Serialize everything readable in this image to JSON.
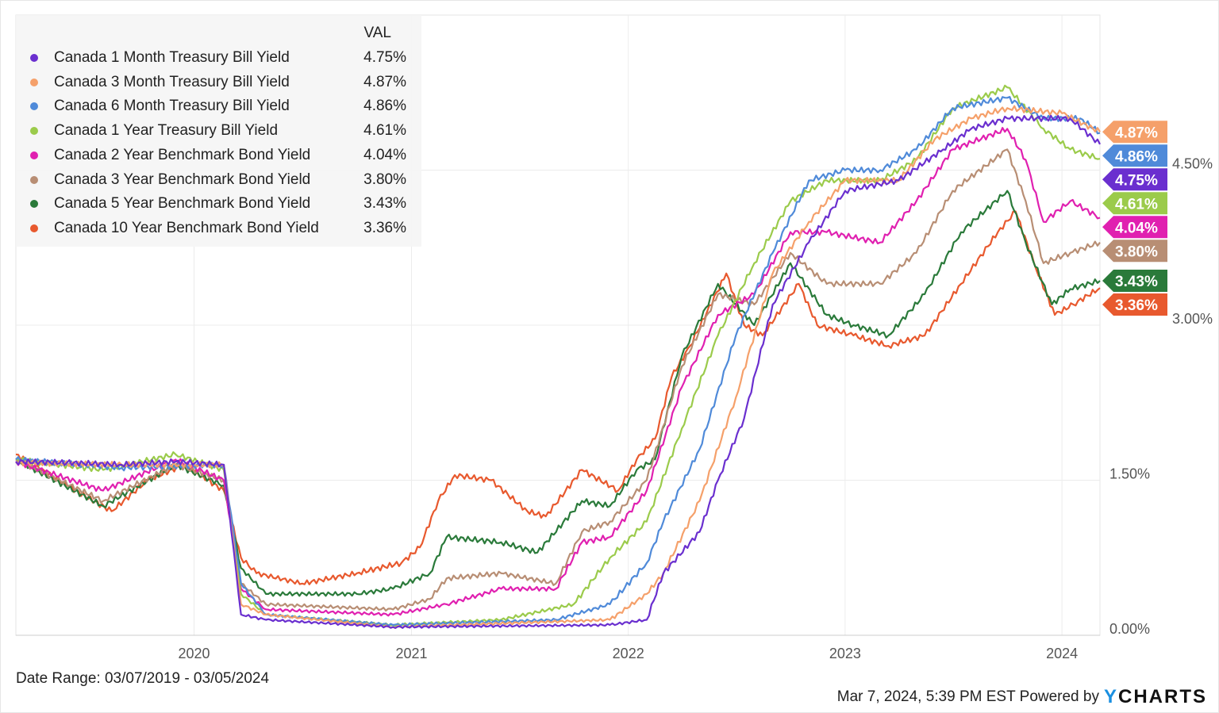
{
  "chart_data": {
    "type": "line",
    "xlabel": "",
    "ylabel": "",
    "x_ticks": [
      "2020",
      "2021",
      "2022",
      "2023",
      "2024"
    ],
    "y_ticks": [
      "0.00%",
      "1.50%",
      "3.00%",
      "4.50%"
    ],
    "y_tick_values": [
      0,
      1.5,
      3.0,
      4.5
    ],
    "ylim": [
      0,
      6.0
    ],
    "xlim": [
      "2019-03-07",
      "2024-03-05"
    ],
    "grid": true,
    "legend_position": "top-left",
    "legend_header": "VAL",
    "series": [
      {
        "name": "Canada 1 Month Treasury Bill Yield",
        "last": "4.75%",
        "color": "#6a2fcf",
        "points": [
          [
            "2019-03-07",
            1.68
          ],
          [
            "2019-06-01",
            1.67
          ],
          [
            "2019-09-01",
            1.65
          ],
          [
            "2019-12-01",
            1.68
          ],
          [
            "2020-02-20",
            1.65
          ],
          [
            "2020-03-20",
            0.2
          ],
          [
            "2020-05-01",
            0.15
          ],
          [
            "2020-12-01",
            0.08
          ],
          [
            "2021-12-01",
            0.1
          ],
          [
            "2022-02-01",
            0.15
          ],
          [
            "2022-03-01",
            0.6
          ],
          [
            "2022-05-01",
            1.0
          ],
          [
            "2022-06-01",
            1.5
          ],
          [
            "2022-07-15",
            2.1
          ],
          [
            "2022-09-01",
            3.2
          ],
          [
            "2022-11-01",
            3.8
          ],
          [
            "2023-01-01",
            4.3
          ],
          [
            "2023-04-01",
            4.4
          ],
          [
            "2023-06-15",
            4.7
          ],
          [
            "2023-08-01",
            4.9
          ],
          [
            "2023-10-01",
            5.0
          ],
          [
            "2024-01-15",
            5.0
          ],
          [
            "2024-03-05",
            4.75
          ]
        ]
      },
      {
        "name": "Canada 3 Month Treasury Bill Yield",
        "last": "4.87%",
        "color": "#f5a06a",
        "points": [
          [
            "2019-03-07",
            1.67
          ],
          [
            "2019-09-01",
            1.65
          ],
          [
            "2020-02-20",
            1.65
          ],
          [
            "2020-03-20",
            0.3
          ],
          [
            "2020-05-01",
            0.2
          ],
          [
            "2020-12-01",
            0.08
          ],
          [
            "2021-12-01",
            0.15
          ],
          [
            "2022-02-01",
            0.4
          ],
          [
            "2022-03-01",
            0.6
          ],
          [
            "2022-05-01",
            1.3
          ],
          [
            "2022-07-01",
            2.3
          ],
          [
            "2022-09-01",
            3.5
          ],
          [
            "2022-11-01",
            4.0
          ],
          [
            "2023-01-01",
            4.4
          ],
          [
            "2023-04-01",
            4.4
          ],
          [
            "2023-06-01",
            4.8
          ],
          [
            "2023-08-01",
            5.0
          ],
          [
            "2023-10-01",
            5.1
          ],
          [
            "2024-01-01",
            5.05
          ],
          [
            "2024-03-05",
            4.87
          ]
        ]
      },
      {
        "name": "Canada 6 Month Treasury Bill Yield",
        "last": "4.86%",
        "color": "#4f8ad9",
        "points": [
          [
            "2019-03-07",
            1.7
          ],
          [
            "2019-09-01",
            1.62
          ],
          [
            "2020-02-20",
            1.65
          ],
          [
            "2020-03-20",
            0.5
          ],
          [
            "2020-05-01",
            0.2
          ],
          [
            "2020-12-01",
            0.1
          ],
          [
            "2021-09-01",
            0.15
          ],
          [
            "2021-12-01",
            0.3
          ],
          [
            "2022-02-01",
            0.7
          ],
          [
            "2022-03-01",
            1.1
          ],
          [
            "2022-05-01",
            1.8
          ],
          [
            "2022-07-01",
            2.9
          ],
          [
            "2022-09-01",
            3.7
          ],
          [
            "2022-11-01",
            4.4
          ],
          [
            "2023-01-01",
            4.5
          ],
          [
            "2023-03-01",
            4.5
          ],
          [
            "2023-05-01",
            4.7
          ],
          [
            "2023-07-01",
            5.1
          ],
          [
            "2023-10-01",
            5.2
          ],
          [
            "2023-12-01",
            5.0
          ],
          [
            "2024-02-01",
            5.0
          ],
          [
            "2024-03-05",
            4.86
          ]
        ]
      },
      {
        "name": "Canada 1 Year Treasury Bill Yield",
        "last": "4.61%",
        "color": "#9bcb4b",
        "points": [
          [
            "2019-03-07",
            1.7
          ],
          [
            "2019-08-01",
            1.6
          ],
          [
            "2019-12-01",
            1.75
          ],
          [
            "2020-02-20",
            1.6
          ],
          [
            "2020-03-20",
            0.4
          ],
          [
            "2020-05-01",
            0.2
          ],
          [
            "2020-12-01",
            0.1
          ],
          [
            "2021-06-01",
            0.15
          ],
          [
            "2021-10-01",
            0.3
          ],
          [
            "2021-12-01",
            0.75
          ],
          [
            "2022-02-01",
            1.1
          ],
          [
            "2022-04-01",
            2.0
          ],
          [
            "2022-06-01",
            2.9
          ],
          [
            "2022-08-01",
            3.6
          ],
          [
            "2022-10-01",
            4.2
          ],
          [
            "2022-12-01",
            4.4
          ],
          [
            "2023-03-01",
            4.4
          ],
          [
            "2023-05-01",
            4.6
          ],
          [
            "2023-07-01",
            5.1
          ],
          [
            "2023-10-01",
            5.3
          ],
          [
            "2023-12-01",
            4.9
          ],
          [
            "2024-01-15",
            4.7
          ],
          [
            "2024-03-05",
            4.61
          ]
        ]
      },
      {
        "name": "Canada 2 Year Benchmark Bond Yield",
        "last": "4.04%",
        "color": "#e020b0",
        "points": [
          [
            "2019-03-07",
            1.68
          ],
          [
            "2019-08-01",
            1.4
          ],
          [
            "2019-12-01",
            1.7
          ],
          [
            "2020-02-20",
            1.5
          ],
          [
            "2020-03-20",
            0.45
          ],
          [
            "2020-05-01",
            0.25
          ],
          [
            "2020-12-01",
            0.2
          ],
          [
            "2021-03-01",
            0.3
          ],
          [
            "2021-06-01",
            0.45
          ],
          [
            "2021-09-01",
            0.45
          ],
          [
            "2021-10-15",
            0.9
          ],
          [
            "2021-12-01",
            0.95
          ],
          [
            "2022-02-01",
            1.4
          ],
          [
            "2022-04-01",
            2.4
          ],
          [
            "2022-06-01",
            3.1
          ],
          [
            "2022-08-01",
            3.3
          ],
          [
            "2022-10-01",
            3.9
          ],
          [
            "2022-12-01",
            3.9
          ],
          [
            "2023-03-01",
            3.8
          ],
          [
            "2023-05-01",
            4.2
          ],
          [
            "2023-07-01",
            4.7
          ],
          [
            "2023-10-01",
            4.9
          ],
          [
            "2023-11-01",
            4.6
          ],
          [
            "2023-12-01",
            4.0
          ],
          [
            "2024-01-15",
            4.2
          ],
          [
            "2024-03-05",
            4.04
          ]
        ]
      },
      {
        "name": "Canada 3 Year Benchmark Bond Yield",
        "last": "3.80%",
        "color": "#b88e74",
        "points": [
          [
            "2019-03-07",
            1.7
          ],
          [
            "2019-08-01",
            1.3
          ],
          [
            "2019-12-01",
            1.65
          ],
          [
            "2020-02-20",
            1.5
          ],
          [
            "2020-03-20",
            0.5
          ],
          [
            "2020-05-01",
            0.3
          ],
          [
            "2020-12-01",
            0.25
          ],
          [
            "2021-02-01",
            0.35
          ],
          [
            "2021-03-01",
            0.55
          ],
          [
            "2021-06-01",
            0.6
          ],
          [
            "2021-09-01",
            0.5
          ],
          [
            "2021-10-15",
            1.0
          ],
          [
            "2021-12-01",
            1.1
          ],
          [
            "2022-02-01",
            1.5
          ],
          [
            "2022-04-01",
            2.6
          ],
          [
            "2022-06-01",
            3.3
          ],
          [
            "2022-08-01",
            3.2
          ],
          [
            "2022-10-01",
            3.7
          ],
          [
            "2022-12-01",
            3.4
          ],
          [
            "2023-03-01",
            3.4
          ],
          [
            "2023-05-01",
            3.7
          ],
          [
            "2023-07-01",
            4.3
          ],
          [
            "2023-10-01",
            4.7
          ],
          [
            "2023-11-01",
            4.2
          ],
          [
            "2023-12-01",
            3.6
          ],
          [
            "2024-01-15",
            3.7
          ],
          [
            "2024-03-05",
            3.8
          ]
        ]
      },
      {
        "name": "Canada 5 Year Benchmark Bond Yield",
        "last": "3.43%",
        "color": "#2a7a3a",
        "points": [
          [
            "2019-03-07",
            1.7
          ],
          [
            "2019-08-01",
            1.25
          ],
          [
            "2019-12-01",
            1.65
          ],
          [
            "2020-02-20",
            1.45
          ],
          [
            "2020-03-20",
            0.65
          ],
          [
            "2020-05-01",
            0.4
          ],
          [
            "2020-10-01",
            0.4
          ],
          [
            "2020-12-01",
            0.45
          ],
          [
            "2021-02-01",
            0.6
          ],
          [
            "2021-03-01",
            0.95
          ],
          [
            "2021-06-01",
            0.9
          ],
          [
            "2021-08-01",
            0.8
          ],
          [
            "2021-10-15",
            1.3
          ],
          [
            "2021-12-01",
            1.25
          ],
          [
            "2022-01-15",
            1.6
          ],
          [
            "2022-02-15",
            1.7
          ],
          [
            "2022-04-01",
            2.7
          ],
          [
            "2022-06-01",
            3.4
          ],
          [
            "2022-08-01",
            3.0
          ],
          [
            "2022-10-01",
            3.6
          ],
          [
            "2022-12-01",
            3.1
          ],
          [
            "2023-01-15",
            3.0
          ],
          [
            "2023-03-15",
            2.9
          ],
          [
            "2023-05-15",
            3.3
          ],
          [
            "2023-07-15",
            3.9
          ],
          [
            "2023-10-01",
            4.3
          ],
          [
            "2023-11-01",
            3.8
          ],
          [
            "2023-12-15",
            3.2
          ],
          [
            "2024-01-15",
            3.35
          ],
          [
            "2024-03-05",
            3.43
          ]
        ]
      },
      {
        "name": "Canada 10 Year Benchmark Bond Yield",
        "last": "3.36%",
        "color": "#e8592e",
        "points": [
          [
            "2019-03-07",
            1.75
          ],
          [
            "2019-06-01",
            1.45
          ],
          [
            "2019-08-15",
            1.2
          ],
          [
            "2019-10-15",
            1.5
          ],
          [
            "2019-12-15",
            1.65
          ],
          [
            "2020-02-20",
            1.4
          ],
          [
            "2020-03-20",
            0.75
          ],
          [
            "2020-04-15",
            0.6
          ],
          [
            "2020-07-01",
            0.5
          ],
          [
            "2020-10-01",
            0.6
          ],
          [
            "2020-12-15",
            0.7
          ],
          [
            "2021-01-15",
            0.85
          ],
          [
            "2021-02-15",
            1.3
          ],
          [
            "2021-03-15",
            1.55
          ],
          [
            "2021-05-15",
            1.5
          ],
          [
            "2021-07-15",
            1.2
          ],
          [
            "2021-08-15",
            1.15
          ],
          [
            "2021-10-15",
            1.6
          ],
          [
            "2021-12-15",
            1.4
          ],
          [
            "2022-01-15",
            1.7
          ],
          [
            "2022-02-15",
            1.9
          ],
          [
            "2022-03-15",
            2.5
          ],
          [
            "2022-04-15",
            2.8
          ],
          [
            "2022-06-15",
            3.5
          ],
          [
            "2022-07-15",
            3.0
          ],
          [
            "2022-08-15",
            2.9
          ],
          [
            "2022-10-15",
            3.4
          ],
          [
            "2022-11-15",
            3.0
          ],
          [
            "2023-01-15",
            2.9
          ],
          [
            "2023-03-15",
            2.8
          ],
          [
            "2023-05-15",
            2.9
          ],
          [
            "2023-07-15",
            3.4
          ],
          [
            "2023-09-15",
            3.9
          ],
          [
            "2023-10-15",
            4.1
          ],
          [
            "2023-11-15",
            3.6
          ],
          [
            "2023-12-20",
            3.1
          ],
          [
            "2024-01-20",
            3.2
          ],
          [
            "2024-03-05",
            3.36
          ]
        ]
      }
    ]
  },
  "footer": {
    "date_range": "Date Range: 03/07/2019 - 03/05/2024",
    "timestamp": "Mar 7, 2024, 5:39 PM EST Powered by",
    "logo_y": "Y",
    "logo_rest": "CHARTS"
  }
}
